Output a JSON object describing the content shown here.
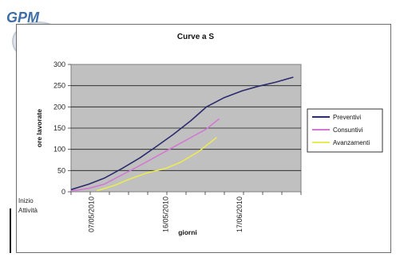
{
  "logo": {
    "text": "GPM"
  },
  "chart_data": {
    "type": "line",
    "title": "Curve a S",
    "xlabel": "giorni",
    "ylabel": "ore lavorate",
    "ylim": [
      0,
      300
    ],
    "yticks": [
      0,
      50,
      100,
      150,
      200,
      250,
      300
    ],
    "x_range": [
      0,
      90
    ],
    "xticks": [
      {
        "x": 8,
        "label": "07/05/2010"
      },
      {
        "x": 37,
        "label": "16/05/2010"
      },
      {
        "x": 66,
        "label": "17/06/2010"
      }
    ],
    "origin_labels": [
      "Inizio",
      "Attività"
    ],
    "grid": true,
    "plot_background": "#c0c0c0",
    "legend_position": "right",
    "series": [
      {
        "name": "Preventivi",
        "color": "#2b2b6e",
        "points": [
          [
            0,
            5
          ],
          [
            7,
            18
          ],
          [
            13,
            32
          ],
          [
            20,
            55
          ],
          [
            27,
            80
          ],
          [
            33,
            105
          ],
          [
            40,
            135
          ],
          [
            47,
            168
          ],
          [
            53,
            200
          ],
          [
            60,
            222
          ],
          [
            67,
            238
          ],
          [
            73,
            248
          ],
          [
            80,
            258
          ],
          [
            87,
            270
          ]
        ]
      },
      {
        "name": "Consuntivi",
        "color": "#d279d2",
        "points": [
          [
            0,
            2
          ],
          [
            7,
            8
          ],
          [
            13,
            18
          ],
          [
            20,
            40
          ],
          [
            27,
            62
          ],
          [
            33,
            82
          ],
          [
            40,
            105
          ],
          [
            47,
            128
          ],
          [
            53,
            148
          ],
          [
            58,
            172
          ]
        ]
      },
      {
        "name": "Avanzamenti",
        "color": "#eaea55",
        "points": [
          [
            10,
            2
          ],
          [
            17,
            15
          ],
          [
            23,
            30
          ],
          [
            30,
            45
          ],
          [
            37,
            55
          ],
          [
            43,
            70
          ],
          [
            50,
            95
          ],
          [
            57,
            128
          ]
        ]
      }
    ]
  }
}
